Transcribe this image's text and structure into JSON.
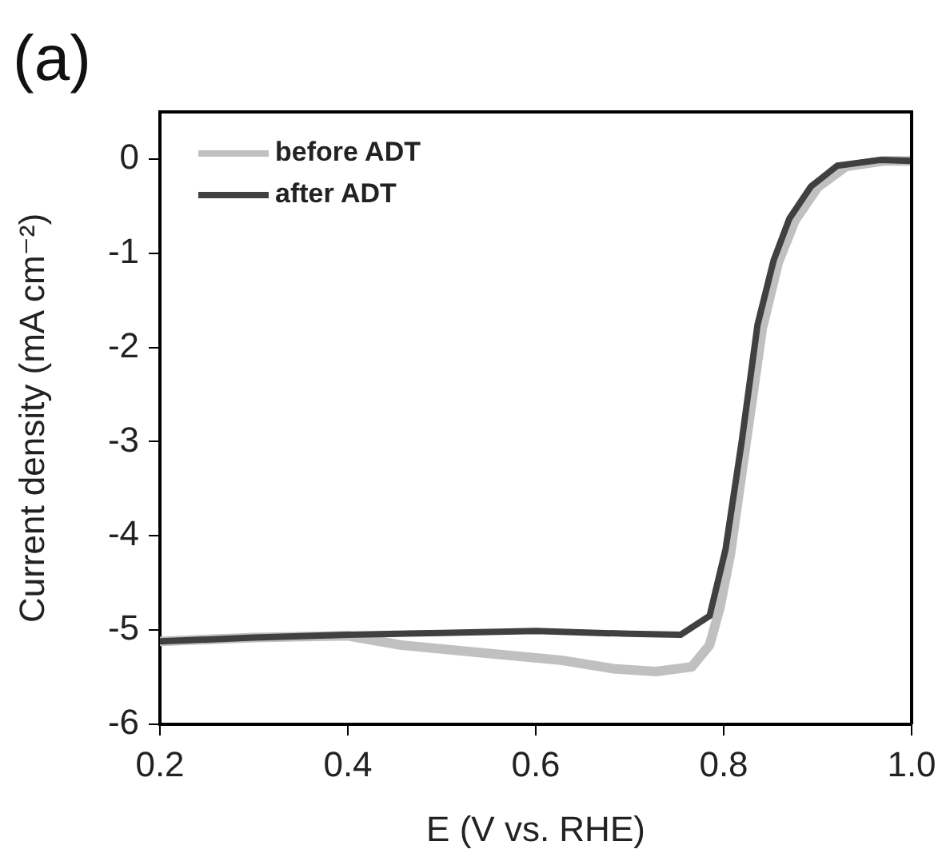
{
  "chart_data": {
    "type": "line",
    "title": "(a)",
    "xlabel": "E (V vs. RHE)",
    "ylabel": "Current density (mA cm⁻²)",
    "xlim": [
      0.2,
      1.0
    ],
    "xticks": [
      0.2,
      0.4,
      0.6,
      0.8,
      {
        "value": 1.0,
        "label": "1.0"
      }
    ],
    "ylim": [
      -6,
      0.5
    ],
    "yticks": [
      -6,
      -5,
      -4,
      -3,
      -2,
      -1,
      0
    ],
    "grid": false,
    "legend": "top left",
    "marker": "none",
    "line_style": "solid",
    "series": [
      {
        "name": "before ADT",
        "color": "#c0c0c0",
        "x": [
          0.2,
          0.3,
          0.4,
          0.457,
          0.542,
          0.627,
          0.683,
          0.728,
          0.766,
          0.785,
          0.796,
          0.807,
          0.824,
          0.841,
          0.858,
          0.876,
          0.9,
          0.93,
          0.97,
          1.0
        ],
        "values": [
          -5.12,
          -5.08,
          -5.06,
          -5.16,
          -5.24,
          -5.32,
          -5.41,
          -5.44,
          -5.39,
          -5.16,
          -4.76,
          -4.2,
          -3.0,
          -1.8,
          -1.1,
          -0.65,
          -0.3,
          -0.08,
          -0.02,
          -0.02
        ]
      },
      {
        "name": "after ADT",
        "color": "#404040",
        "x": [
          0.2,
          0.3,
          0.4,
          0.5,
          0.6,
          0.7,
          0.754,
          0.785,
          0.802,
          0.819,
          0.836,
          0.853,
          0.87,
          0.893,
          0.921,
          0.966,
          1.0
        ],
        "values": [
          -5.12,
          -5.08,
          -5.05,
          -5.03,
          -5.01,
          -5.04,
          -5.05,
          -4.85,
          -4.14,
          -3.01,
          -1.76,
          -1.08,
          -0.63,
          -0.29,
          -0.07,
          -0.01,
          -0.02
        ]
      }
    ]
  }
}
